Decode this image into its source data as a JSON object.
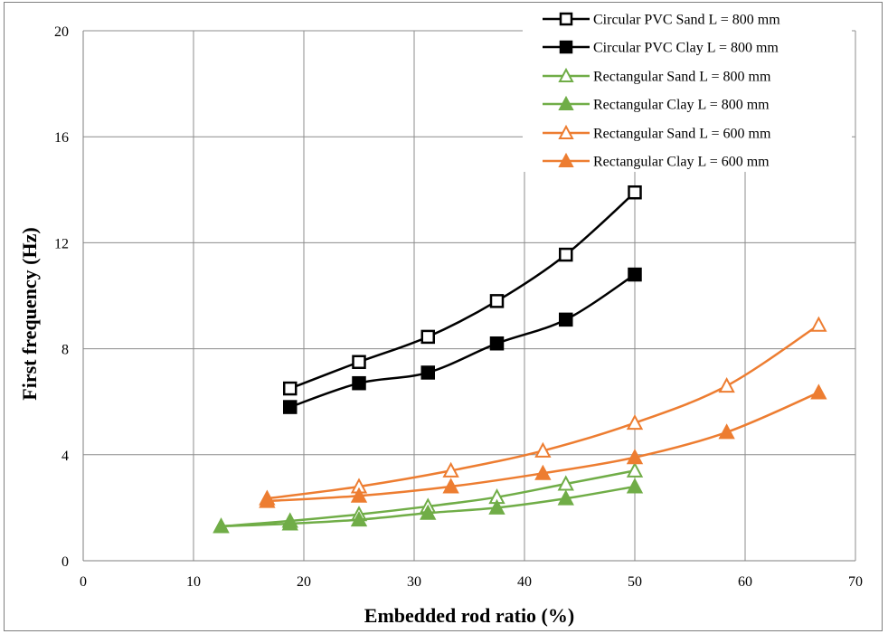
{
  "chart_data": {
    "type": "line",
    "title": "",
    "xlabel": "Embedded rod ratio (%)",
    "ylabel": "First  frequency (Hz)",
    "xlim": [
      0,
      70
    ],
    "ylim": [
      0,
      20
    ],
    "xticks": [
      0,
      10,
      20,
      30,
      40,
      50,
      60,
      70
    ],
    "yticks": [
      0,
      4,
      8,
      12,
      16,
      20
    ],
    "grid": true,
    "legend_position": "top-right",
    "series": [
      {
        "name": "Circular PVC Sand L = 800 mm",
        "color": "#000000",
        "marker": "square-open",
        "x": [
          18.75,
          25,
          31.25,
          37.5,
          43.75,
          50
        ],
        "y": [
          6.5,
          7.5,
          8.45,
          9.8,
          11.55,
          13.9
        ]
      },
      {
        "name": "Circular PVC Clay L = 800 mm",
        "color": "#000000",
        "marker": "square-filled",
        "x": [
          18.75,
          25,
          31.25,
          37.5,
          43.75,
          50
        ],
        "y": [
          5.8,
          6.7,
          7.1,
          8.2,
          9.1,
          10.8
        ]
      },
      {
        "name": "Rectangular Sand L = 800 mm",
        "color": "#70AD47",
        "marker": "triangle-open",
        "x": [
          12.5,
          18.75,
          25,
          31.25,
          37.5,
          43.75,
          50
        ],
        "y": [
          1.3,
          1.5,
          1.75,
          2.05,
          2.4,
          2.9,
          3.4
        ]
      },
      {
        "name": "Rectangular Clay L = 800 mm",
        "color": "#70AD47",
        "marker": "triangle-filled",
        "x": [
          12.5,
          18.75,
          25,
          31.25,
          37.5,
          43.75,
          50
        ],
        "y": [
          1.3,
          1.4,
          1.55,
          1.8,
          2.0,
          2.35,
          2.8
        ]
      },
      {
        "name": "Rectangular Sand L = 600 mm",
        "color": "#ED7D31",
        "marker": "triangle-open",
        "x": [
          16.67,
          25,
          33.33,
          41.67,
          50,
          58.33,
          66.67
        ],
        "y": [
          2.35,
          2.8,
          3.4,
          4.15,
          5.2,
          6.6,
          8.9
        ]
      },
      {
        "name": "Rectangular  Clay L = 600 mm",
        "color": "#ED7D31",
        "marker": "triangle-filled",
        "x": [
          16.67,
          25,
          33.33,
          41.67,
          50,
          58.33,
          66.67
        ],
        "y": [
          2.25,
          2.45,
          2.8,
          3.3,
          3.9,
          4.85,
          6.35
        ]
      }
    ]
  }
}
